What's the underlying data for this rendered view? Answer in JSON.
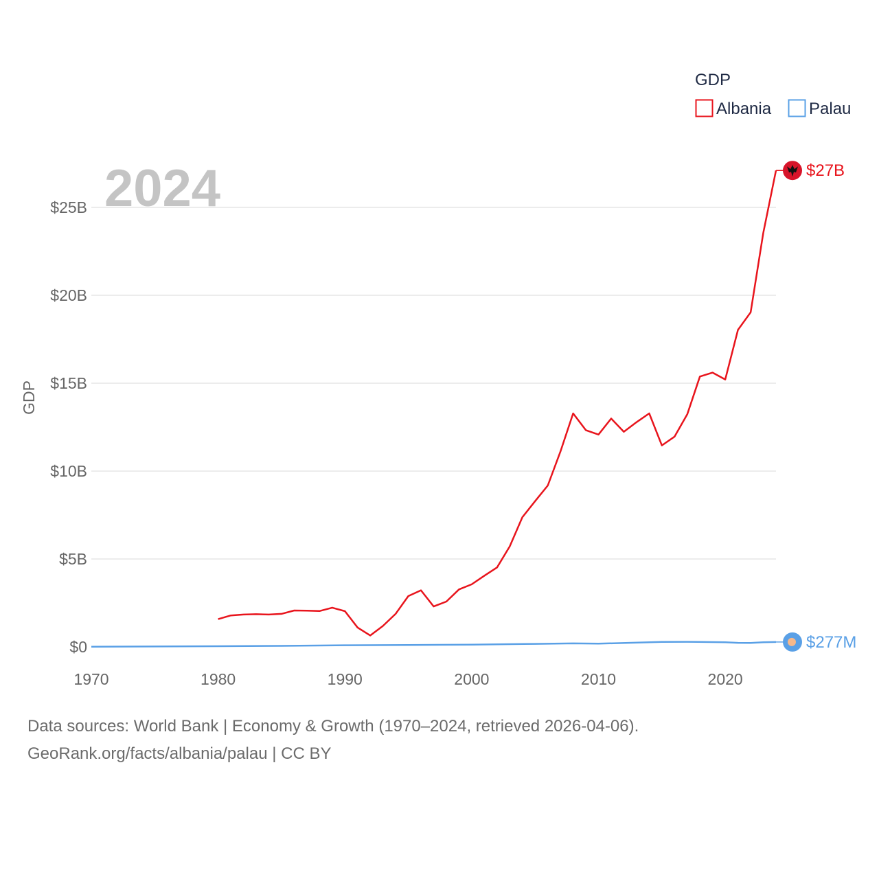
{
  "chart_data": {
    "type": "line",
    "year_label": "2024",
    "ylabel": "GDP",
    "xlim": [
      1970,
      2024
    ],
    "ylim": [
      0,
      27000000000
    ],
    "x_ticks": [
      1970,
      1980,
      1990,
      2000,
      2010,
      2020
    ],
    "x_tick_labels": [
      "1970",
      "1980",
      "1990",
      "2000",
      "2010",
      "2020"
    ],
    "y_ticks": [
      0,
      5000000000,
      10000000000,
      15000000000,
      20000000000,
      25000000000
    ],
    "y_tick_labels": [
      "$0",
      "$5B",
      "$10B",
      "$15B",
      "$20B",
      "$25B"
    ],
    "legend": {
      "title": "GDP",
      "position": "top-right"
    },
    "series": [
      {
        "name": "Albania",
        "color": "#e8141c",
        "end_label": "$27B",
        "marker_icon": "albania-flag-icon",
        "x": [
          1980,
          1981,
          1982,
          1983,
          1984,
          1985,
          1986,
          1987,
          1988,
          1989,
          1990,
          1991,
          1992,
          1993,
          1994,
          1995,
          1996,
          1997,
          1998,
          1999,
          2000,
          2001,
          2002,
          2003,
          2004,
          2005,
          2006,
          2007,
          2008,
          2009,
          2010,
          2011,
          2012,
          2013,
          2014,
          2015,
          2016,
          2017,
          2018,
          2019,
          2020,
          2021,
          2022,
          2023,
          2024
        ],
        "values": [
          1580000000,
          1790000000,
          1840000000,
          1860000000,
          1840000000,
          1880000000,
          2070000000,
          2060000000,
          2040000000,
          2230000000,
          2030000000,
          1100000000,
          650000000,
          1190000000,
          1880000000,
          2890000000,
          3220000000,
          2300000000,
          2580000000,
          3270000000,
          3560000000,
          4050000000,
          4520000000,
          5720000000,
          7380000000,
          8290000000,
          9180000000,
          11110000000,
          13280000000,
          12330000000,
          12080000000,
          12990000000,
          12240000000,
          12780000000,
          13280000000,
          11460000000,
          11960000000,
          13230000000,
          15380000000,
          15600000000,
          15210000000,
          18030000000,
          19030000000,
          23550000000,
          27100000000
        ]
      },
      {
        "name": "Palau",
        "color": "#5aa0e6",
        "end_label": "$277M",
        "marker_icon": "palau-flag-icon",
        "x": [
          1970,
          1975,
          1980,
          1985,
          1990,
          1995,
          2000,
          2005,
          2008,
          2010,
          2015,
          2017,
          2020,
          2021,
          2022,
          2023,
          2024
        ],
        "values": [
          10000000,
          25000000,
          40000000,
          60000000,
          95000000,
          110000000,
          130000000,
          170000000,
          200000000,
          185000000,
          280000000,
          290000000,
          260000000,
          230000000,
          225000000,
          265000000,
          277000000
        ]
      }
    ]
  },
  "footer": {
    "line1": "Data sources: World Bank | Economy & Growth (1970–2024, retrieved 2026-04-06).",
    "line2": "GeoRank.org/facts/albania/palau | CC BY"
  }
}
